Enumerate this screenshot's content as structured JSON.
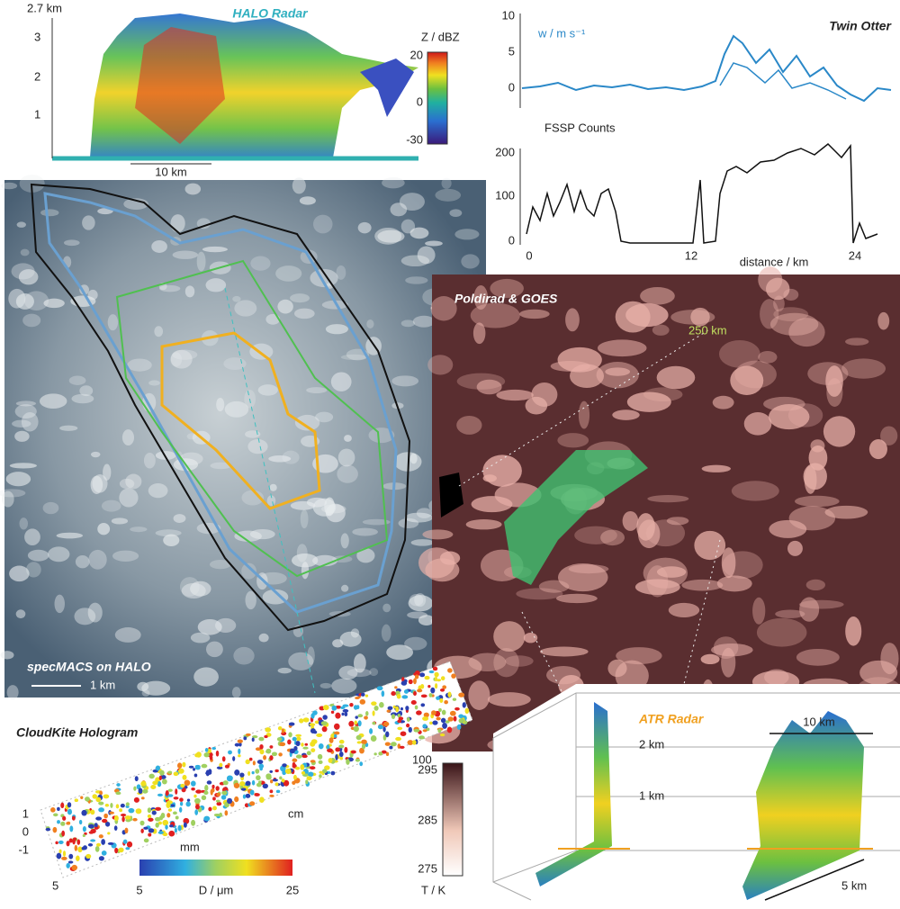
{
  "halo_radar": {
    "title": "HALO Radar",
    "height_label": "2.7 km",
    "yticks": [
      "3",
      "2",
      "1"
    ],
    "scale": "10 km",
    "colorbar": {
      "label": "Z / dBZ",
      "ticks": [
        "20",
        "0",
        "-30"
      ]
    }
  },
  "twin_otter": {
    "title": "Twin Otter",
    "w_label": "w / m s⁻¹",
    "w_ticks": [
      "10",
      "5",
      "0"
    ],
    "fssp_label": "FSSP Counts",
    "fssp_ticks": [
      "200",
      "100",
      "0"
    ],
    "x_ticks": [
      "0",
      "12",
      "24"
    ],
    "x_label": "distance / km"
  },
  "specmacs": {
    "title": "specMACS on HALO",
    "scale": "1 km"
  },
  "poldirad": {
    "title": "Poldirad & GOES",
    "range": "250 km",
    "corner": "100",
    "colorbar": {
      "label": "T / K",
      "ticks": [
        "295",
        "285",
        "275"
      ]
    }
  },
  "cloudkite": {
    "title": "CloudKite Hologram",
    "axis_ticks": [
      "1",
      "0",
      "-1"
    ],
    "depth_labels": [
      "5",
      "mm",
      "cm"
    ],
    "colorbar": {
      "label": "D / μm",
      "ticks": [
        "5",
        "25"
      ]
    }
  },
  "atr_radar": {
    "title": "ATR Radar",
    "heights": [
      "2 km",
      "1 km"
    ],
    "scales": [
      "10 km",
      "5 km"
    ]
  }
}
